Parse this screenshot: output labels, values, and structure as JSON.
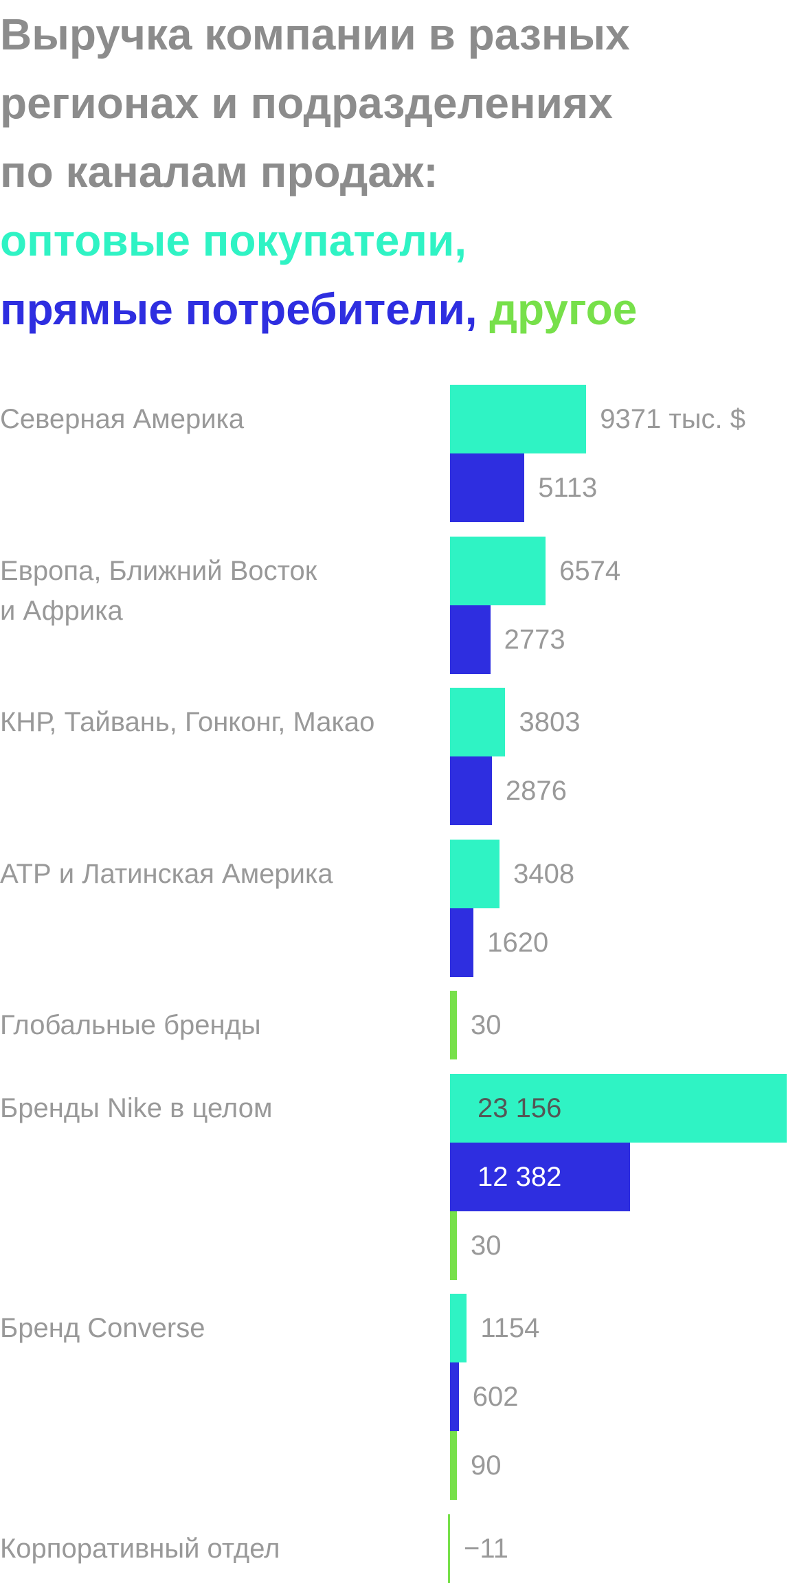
{
  "chart_data": {
    "type": "bar",
    "orientation": "horizontal",
    "title": "Выручка компании в разных\nрегионах и подразделениях\nпо каналам продаж:",
    "legend_separator": ",",
    "categories": [
      "Северная Америка",
      "Европа, Ближний Восток\nи Африка",
      "КНР, Тайвань, Гонконг, Макао",
      "АТР и Латинская Америка",
      "Глобальные бренды",
      "Бренды Nike в целом",
      "Бренд Converse",
      "Корпоративный отдел"
    ],
    "series": [
      {
        "name": "оптовые покупатели",
        "color": "#2ff3c4",
        "values": [
          9371,
          6574,
          3803,
          3408,
          null,
          23156,
          1154,
          null
        ],
        "value_labels": [
          "9371 тыс. $",
          "6574",
          "3803",
          "3408",
          null,
          "23 156",
          "1154",
          null
        ]
      },
      {
        "name": "прямые потребители",
        "color": "#2e2ee0",
        "values": [
          5113,
          2773,
          2876,
          1620,
          null,
          12382,
          602,
          null
        ],
        "value_labels": [
          "5113",
          "2773",
          "2876",
          "1620",
          null,
          "12 382",
          "602",
          null
        ]
      },
      {
        "name": "другое",
        "color": "#77e04a",
        "values": [
          null,
          null,
          null,
          null,
          30,
          30,
          90,
          -11
        ],
        "value_labels": [
          null,
          null,
          null,
          null,
          "30",
          "30",
          "90",
          "−11"
        ]
      }
    ]
  }
}
